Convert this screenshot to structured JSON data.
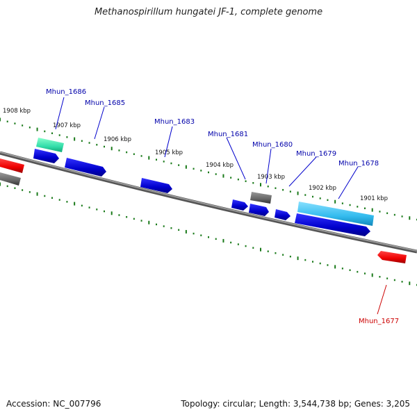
{
  "title": "Methanospirillum hungatei JF-1, complete genome",
  "footer": {
    "accession": "Accession: NC_007796",
    "summary": "Topology: circular; Length: 3,544,738 bp; Genes: 3,205"
  },
  "colors": {
    "backbone": "#777777",
    "tick": "#1a7a1a",
    "forward_gene": "#0000dd",
    "reverse_gene": "#ee0000",
    "gray_gene": "#666666",
    "cyan_gene": "#33bbee",
    "teal_gene": "#33ddaa",
    "label_forward": "#0000aa",
    "label_reverse": "#cc0000"
  },
  "ruler": [
    {
      "label": "1908 kbp"
    },
    {
      "label": "1907 kbp"
    },
    {
      "label": "1906 kbp"
    },
    {
      "label": "1905 kbp"
    },
    {
      "label": "1904 kbp"
    },
    {
      "label": "1903 kbp"
    },
    {
      "label": "1902 kbp"
    },
    {
      "label": "1901 kbp"
    }
  ],
  "gene_labels": [
    {
      "name": "Mhun_1686",
      "strand": "forward"
    },
    {
      "name": "Mhun_1685",
      "strand": "forward"
    },
    {
      "name": "Mhun_1683",
      "strand": "forward"
    },
    {
      "name": "Mhun_1681",
      "strand": "forward"
    },
    {
      "name": "Mhun_1680",
      "strand": "forward"
    },
    {
      "name": "Mhun_1679",
      "strand": "forward"
    },
    {
      "name": "Mhun_1678",
      "strand": "forward"
    },
    {
      "name": "Mhun_1677",
      "strand": "reverse"
    }
  ]
}
